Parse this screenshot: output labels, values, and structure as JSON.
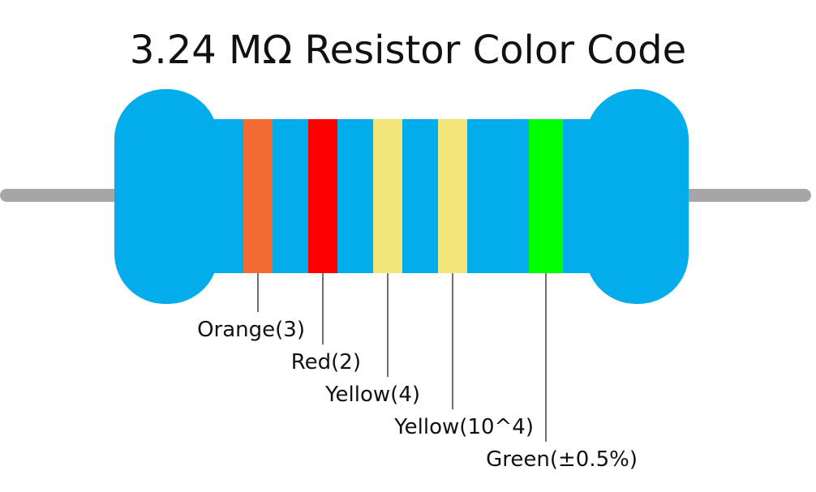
{
  "title": "3.24 MΩ Resistor Color Code",
  "colors": {
    "body": "#03adeb",
    "lead": "#a6a6a6",
    "text": "#111111"
  },
  "bands": [
    {
      "label": "Orange(3)",
      "color": "#f26b33"
    },
    {
      "label": "Red(2)",
      "color": "#ff0000"
    },
    {
      "label": "Yellow(4)",
      "color": "#f2e67a"
    },
    {
      "label": "Yellow(10^4)",
      "color": "#f2e67a"
    },
    {
      "label": "Green(±0.5%)",
      "color": "#00ff00"
    }
  ]
}
